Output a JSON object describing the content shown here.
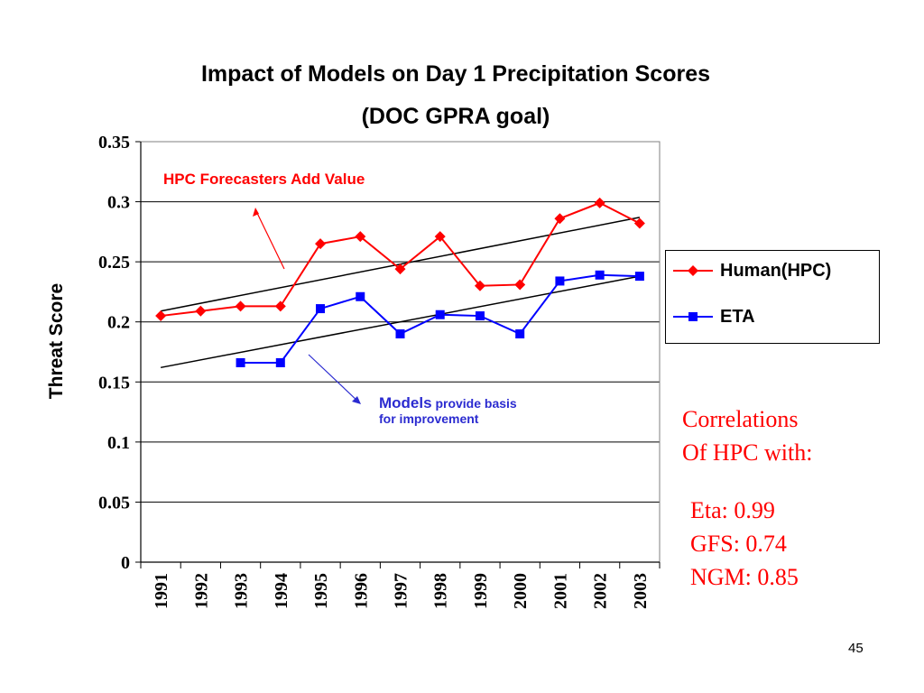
{
  "slide": {
    "title_line1": "Impact of Models on Day 1 Precipitation Scores",
    "title_line2": "(DOC GPRA goal)",
    "annotation_hpc": "HPC Forecasters Add Value",
    "annotation_models_bold": "Models",
    "annotation_models_rest1": " provide basis",
    "annotation_models_rest2": "for improvement",
    "correlations_line1": "Correlations",
    "correlations_line2": "Of HPC with:",
    "corr_eta": "Eta: 0.99",
    "corr_gfs": "GFS: 0.74",
    "corr_ngm": "NGM: 0.85",
    "page_number": "45"
  },
  "chart_data": {
    "type": "line",
    "title": "Impact of Models on Day 1 Precipitation Scores (DOC GPRA goal)",
    "xlabel": "",
    "ylabel": "Threat Score",
    "categories": [
      "1991",
      "1992",
      "1993",
      "1994",
      "1995",
      "1996",
      "1997",
      "1998",
      "1999",
      "2000",
      "2001",
      "2002",
      "2003"
    ],
    "ylim": [
      0,
      0.35
    ],
    "yticks": [
      "0.35",
      "0.3",
      "0.25",
      "0.2",
      "0.15",
      "0.1",
      "0.05",
      "0"
    ],
    "ytick_values": [
      0.35,
      0.3,
      0.25,
      0.2,
      0.15,
      0.1,
      0.05,
      0
    ],
    "grid": true,
    "legend_position": "right",
    "series": [
      {
        "name": "Human(HPC)",
        "color": "#ff0000",
        "marker": "diamond",
        "values": [
          0.205,
          0.209,
          0.213,
          0.213,
          0.265,
          0.271,
          0.244,
          0.271,
          0.23,
          0.231,
          0.286,
          0.299,
          0.282
        ]
      },
      {
        "name": "ETA",
        "color": "#0000ff",
        "marker": "square",
        "values": [
          null,
          null,
          0.166,
          0.166,
          0.211,
          0.221,
          0.19,
          0.206,
          0.205,
          0.19,
          0.234,
          0.239,
          0.238
        ]
      }
    ],
    "trendlines": [
      {
        "color": "#000000",
        "start": [
          0,
          0.209
        ],
        "end": [
          12,
          0.287
        ]
      },
      {
        "color": "#000000",
        "start": [
          0,
          0.162
        ],
        "end": [
          12,
          0.238
        ]
      }
    ]
  }
}
